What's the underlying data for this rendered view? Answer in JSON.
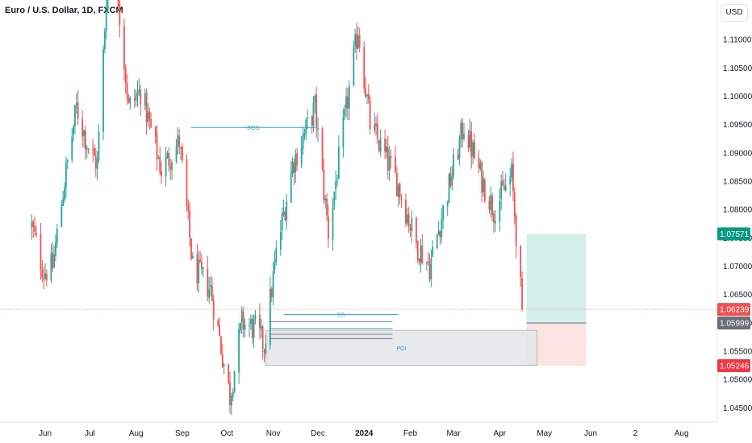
{
  "header": {
    "title": "Euro / U.S. Dollar, 1D, FXCM",
    "currency_button": "USD"
  },
  "colors": {
    "up": "#26a69a",
    "down": "#ef5350",
    "annotation": "#22a8c8",
    "profit_zone": "#d3efe9",
    "loss_zone": "#fde2e2",
    "poi_zone": "#e4e5e8",
    "current_price_tag": "#ef5350",
    "target_tag": "#089981",
    "stop_tag": "#f23645",
    "entry_tag": "#6b6f7a"
  },
  "chart_data": {
    "type": "candlestick",
    "symbol": "Euro / U.S. Dollar",
    "timeframe": "1D",
    "source": "FXCM",
    "ylim": [
      1.0425,
      1.117
    ],
    "y_ticks": [
      "1.11000",
      "1.10500",
      "1.10000",
      "1.09500",
      "1.09000",
      "1.08500",
      "1.08000",
      "1.07500",
      "1.07000",
      "1.06500",
      "1.06000",
      "1.05500",
      "1.05000",
      "1.04500"
    ],
    "x_ticks": [
      "Jun",
      "Jul",
      "Aug",
      "Sep",
      "Oct",
      "Nov",
      "Dec",
      "2024",
      "Feb",
      "Mar",
      "Apr",
      "May",
      "Jun",
      "2",
      "Aug"
    ],
    "close_path": [
      {
        "date": "2023-05-23",
        "close": 1.077
      },
      {
        "date": "2023-05-31",
        "close": 1.069
      },
      {
        "date": "2023-06-06",
        "close": 1.07
      },
      {
        "date": "2023-06-14",
        "close": 1.085
      },
      {
        "date": "2023-06-22",
        "close": 1.098
      },
      {
        "date": "2023-06-30",
        "close": 1.091
      },
      {
        "date": "2023-07-06",
        "close": 1.088
      },
      {
        "date": "2023-07-13",
        "close": 1.122
      },
      {
        "date": "2023-07-18",
        "close": 1.123
      },
      {
        "date": "2023-07-27",
        "close": 1.098
      },
      {
        "date": "2023-08-04",
        "close": 1.101
      },
      {
        "date": "2023-08-18",
        "close": 1.087
      },
      {
        "date": "2023-08-30",
        "close": 1.092
      },
      {
        "date": "2023-09-08",
        "close": 1.07
      },
      {
        "date": "2023-09-20",
        "close": 1.066
      },
      {
        "date": "2023-10-03",
        "close": 1.047
      },
      {
        "date": "2023-10-11",
        "close": 1.06
      },
      {
        "date": "2023-10-20",
        "close": 1.059
      },
      {
        "date": "2023-10-26",
        "close": 1.056
      },
      {
        "date": "2023-11-03",
        "close": 1.072
      },
      {
        "date": "2023-11-14",
        "close": 1.088
      },
      {
        "date": "2023-11-29",
        "close": 1.098
      },
      {
        "date": "2023-12-08",
        "close": 1.076
      },
      {
        "date": "2023-12-28",
        "close": 1.112
      },
      {
        "date": "2024-01-05",
        "close": 1.095
      },
      {
        "date": "2024-01-23",
        "close": 1.085
      },
      {
        "date": "2024-02-05",
        "close": 1.074
      },
      {
        "date": "2024-02-14",
        "close": 1.07
      },
      {
        "date": "2024-03-08",
        "close": 1.095
      },
      {
        "date": "2024-03-19",
        "close": 1.086
      },
      {
        "date": "2024-03-28",
        "close": 1.08
      },
      {
        "date": "2024-04-09",
        "close": 1.086
      },
      {
        "date": "2024-04-16",
        "close": 1.0624
      }
    ],
    "current_price": "1.06239",
    "annotations": [
      {
        "label": "BOS",
        "type": "line",
        "price": 1.0945,
        "from": "2023-09-07",
        "to": "2023-11-29"
      },
      {
        "label": "SS",
        "type": "line",
        "price": 1.0615,
        "from": "2023-11-08",
        "to": "2024-01-24"
      },
      {
        "label": "POI",
        "type": "zone",
        "top": 1.0587,
        "bottom": 1.0525,
        "from": "2023-10-27",
        "to": "2024-04-26"
      }
    ],
    "position": {
      "target": "1.07571",
      "entry": "1.05999",
      "stop": "1.05246",
      "from": "2024-04-19",
      "to": "2024-05-29"
    }
  }
}
